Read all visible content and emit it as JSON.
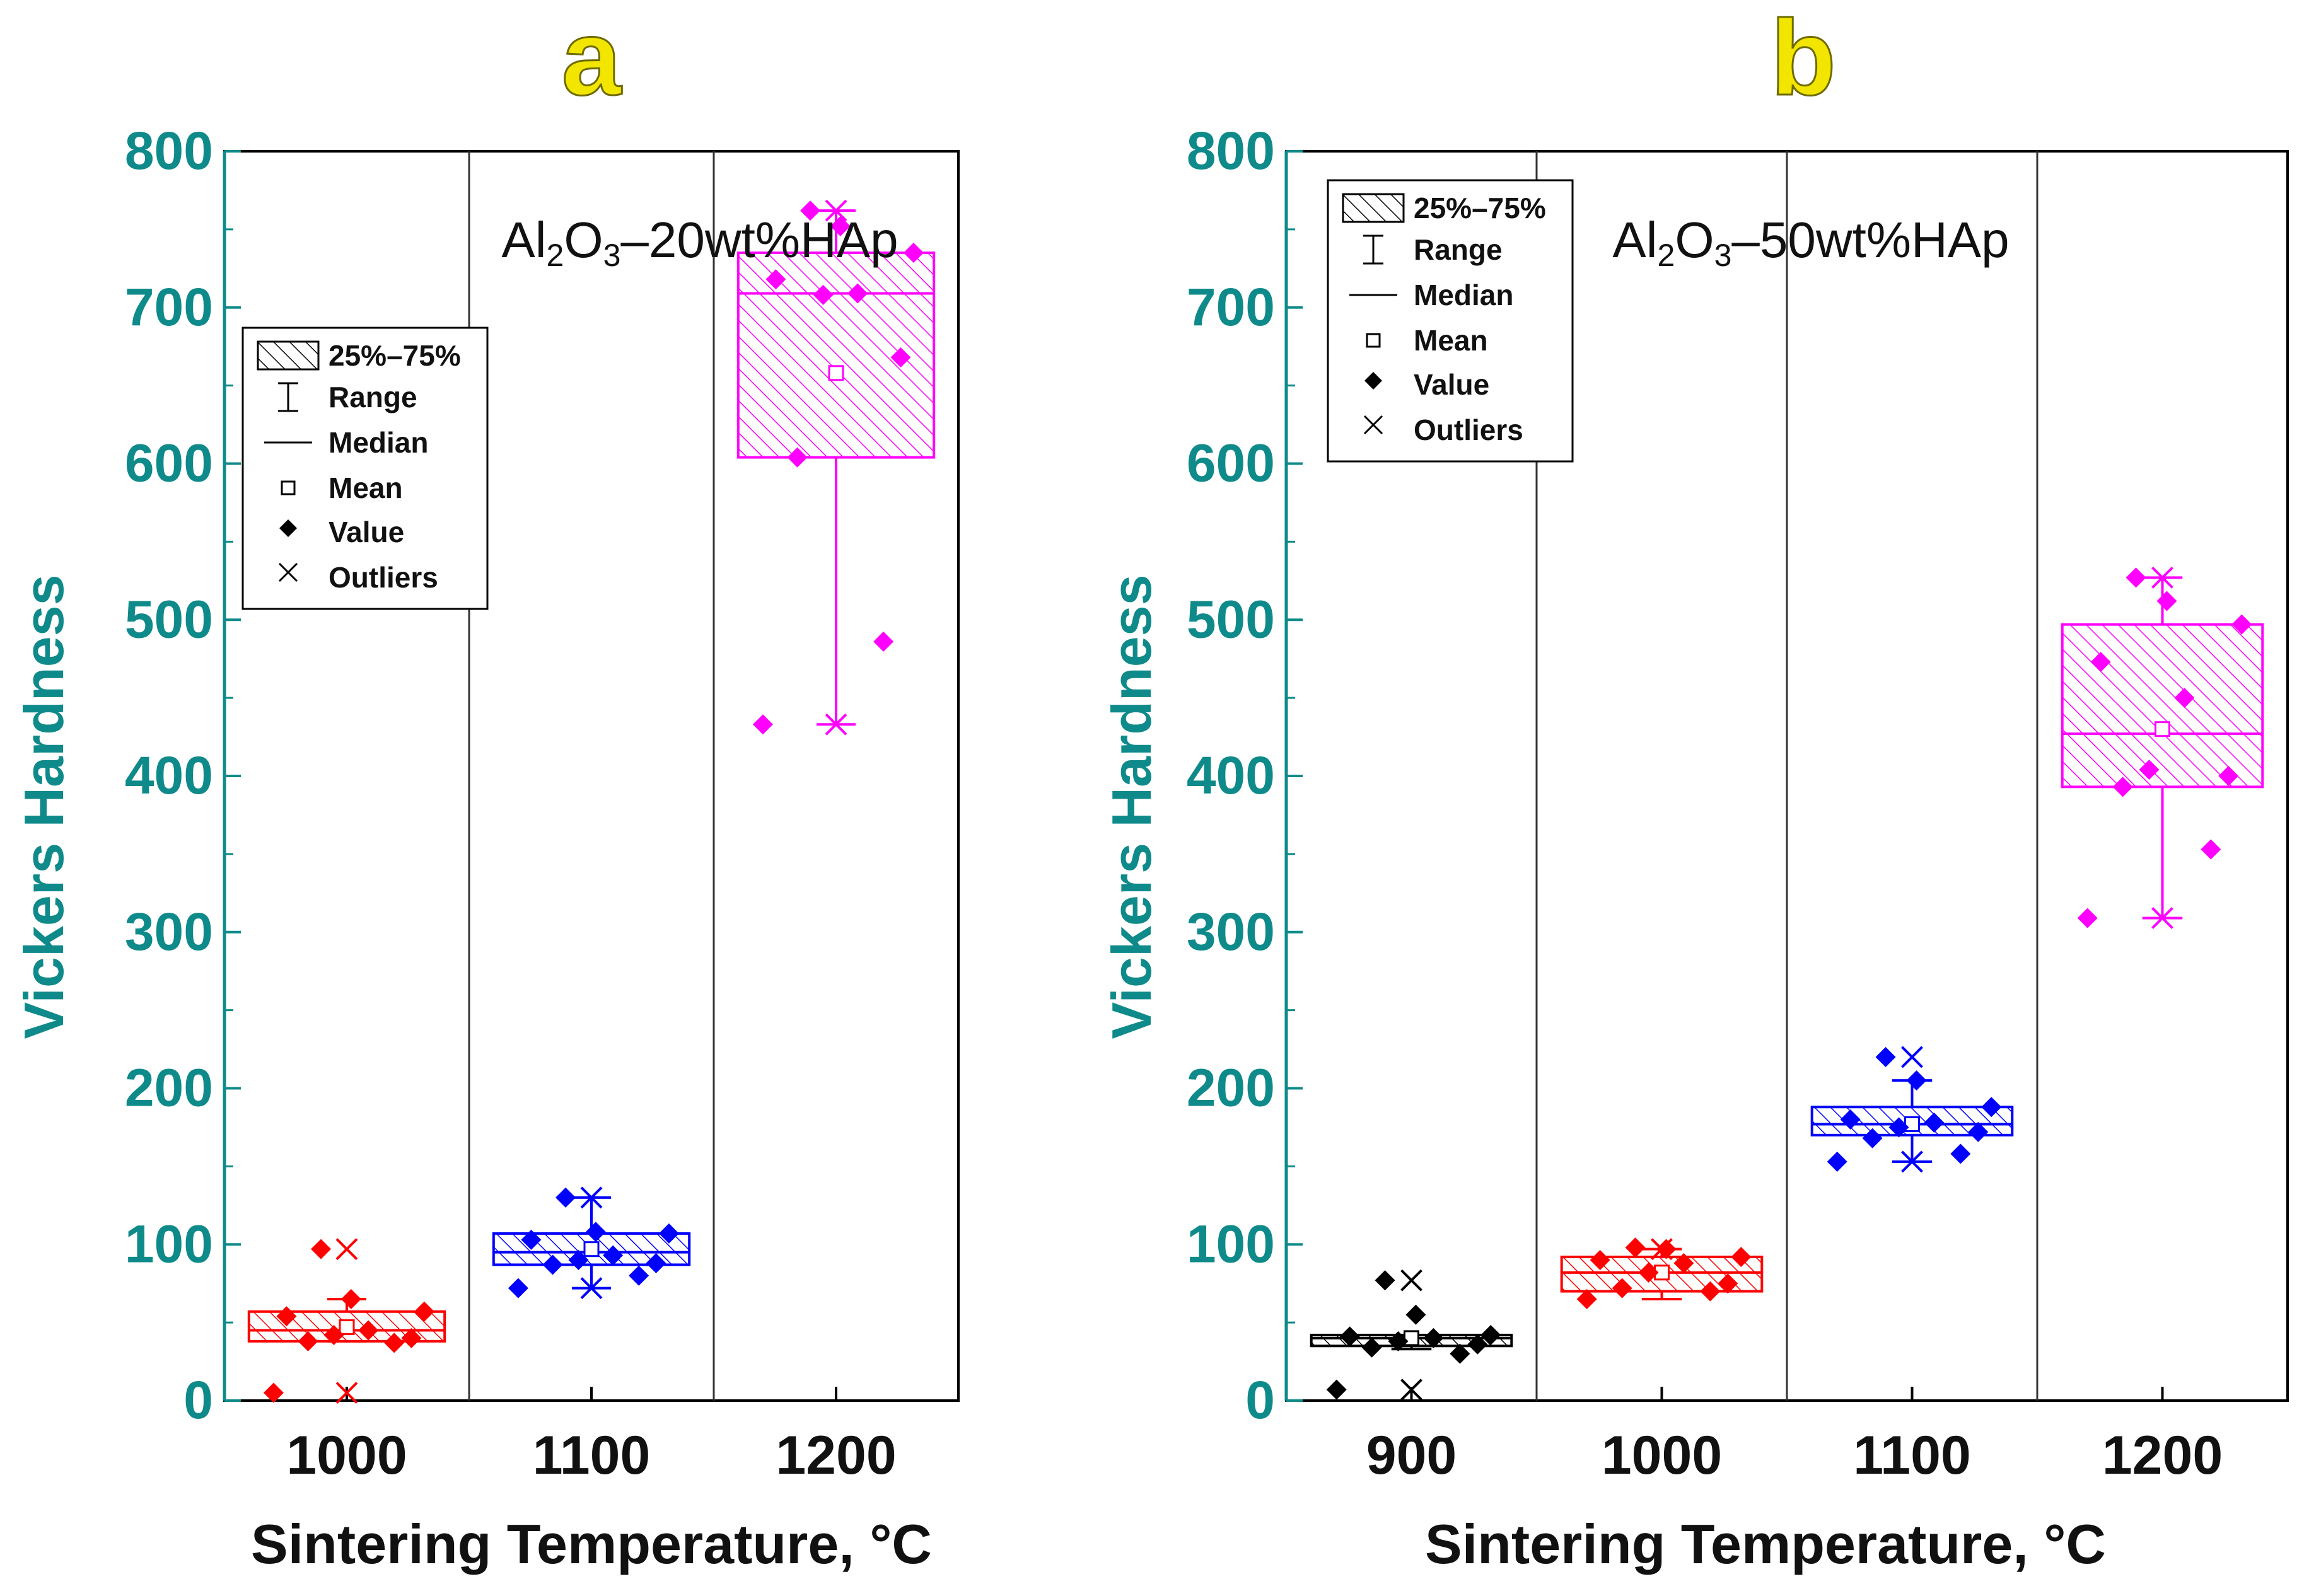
{
  "chart_data": [
    {
      "type": "box",
      "panel_label": "a",
      "annotation": {
        "parts": [
          "Al",
          "2",
          "O",
          "3",
          "–20wt%HAp"
        ]
      },
      "xlabel": "Sintering Temperature, °C",
      "ylabel": "Vickers Hardness",
      "ylim": [
        0,
        800
      ],
      "yticks": [
        0,
        100,
        200,
        300,
        400,
        500,
        600,
        700,
        800
      ],
      "legend": {
        "position": "upper-left",
        "entries": [
          "25%–75%",
          "Range",
          "Median",
          "Mean",
          "Value",
          "Outliers"
        ]
      },
      "groups": [
        {
          "category": "1000",
          "color": "#ff0000",
          "q1": 38,
          "median": 45,
          "q3": 57,
          "mean": 47,
          "range": [
            38,
            65
          ],
          "outliers": [
            5,
            97
          ],
          "values": [
            5,
            37,
            38,
            40,
            42,
            45,
            54,
            57,
            65,
            97
          ]
        },
        {
          "category": "1100",
          "color": "#0000ff",
          "q1": 87,
          "median": 95,
          "q3": 107,
          "mean": 97,
          "range": [
            72,
            130
          ],
          "outliers": [
            72,
            130
          ],
          "values": [
            72,
            80,
            87,
            88,
            90,
            93,
            103,
            107,
            108,
            130
          ]
        },
        {
          "category": "1200",
          "color": "#ff00ff",
          "q1": 604,
          "median": 709,
          "q3": 735,
          "mean": 658,
          "range": [
            433,
            762
          ],
          "outliers": [
            433,
            762
          ],
          "values": [
            433,
            486,
            604,
            668,
            708,
            709,
            718,
            735,
            752,
            762
          ]
        }
      ]
    },
    {
      "type": "box",
      "panel_label": "b",
      "annotation": {
        "parts": [
          "Al",
          "2",
          "O",
          "3",
          "–50wt%HAp"
        ]
      },
      "xlabel": "Sintering Temperature, °C",
      "ylabel": "Vickers Hardness",
      "ylim": [
        0,
        800
      ],
      "yticks": [
        0,
        100,
        200,
        300,
        400,
        500,
        600,
        700,
        800
      ],
      "legend": {
        "position": "upper-left",
        "entries": [
          "25%–75%",
          "Range",
          "Median",
          "Mean",
          "Value",
          "Outliers"
        ]
      },
      "groups": [
        {
          "category": "900",
          "color": "#000000",
          "q1": 35,
          "median": 40,
          "q3": 42,
          "mean": 40,
          "range": [
            33,
            42
          ],
          "outliers": [
            7,
            77
          ],
          "values": [
            7,
            30,
            34,
            36,
            38,
            40,
            41,
            42,
            55,
            77
          ]
        },
        {
          "category": "1000",
          "color": "#ff0000",
          "q1": 70,
          "median": 82,
          "q3": 92,
          "mean": 82,
          "range": [
            65,
            97
          ],
          "outliers": [
            97
          ],
          "values": [
            65,
            70,
            72,
            75,
            82,
            88,
            90,
            92,
            97,
            98
          ]
        },
        {
          "category": "1100",
          "color": "#0000ff",
          "q1": 170,
          "median": 177,
          "q3": 188,
          "mean": 177,
          "range": [
            153,
            205
          ],
          "outliers": [
            153,
            220
          ],
          "values": [
            153,
            158,
            168,
            172,
            175,
            178,
            180,
            188,
            205,
            220
          ]
        },
        {
          "category": "1200",
          "color": "#ff00ff",
          "q1": 393,
          "median": 427,
          "q3": 497,
          "mean": 430,
          "range": [
            309,
            527
          ],
          "outliers": [
            309,
            527
          ],
          "values": [
            309,
            353,
            393,
            400,
            404,
            450,
            473,
            497,
            512,
            527
          ]
        }
      ]
    }
  ]
}
